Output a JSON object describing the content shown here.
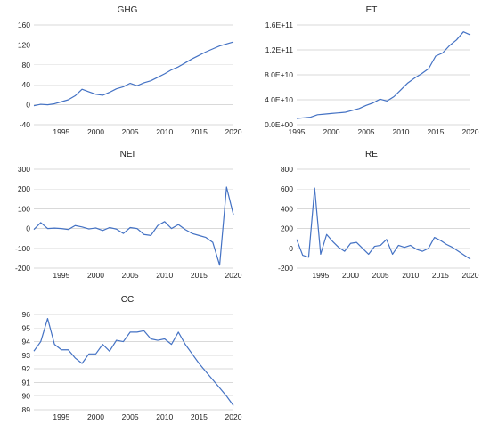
{
  "chart_data": [
    {
      "type": "line",
      "title": "GHG",
      "x": [
        1991,
        1992,
        1993,
        1994,
        1995,
        1996,
        1997,
        1998,
        1999,
        2000,
        2001,
        2002,
        2003,
        2004,
        2005,
        2006,
        2007,
        2008,
        2009,
        2010,
        2011,
        2012,
        2013,
        2014,
        2015,
        2016,
        2017,
        2018,
        2019,
        2020
      ],
      "series": [
        {
          "values": [
            -2,
            1,
            0,
            2,
            6,
            10,
            18,
            31,
            26,
            21,
            19,
            25,
            32,
            36,
            43,
            38,
            44,
            48,
            55,
            62,
            70,
            76,
            84,
            92,
            99,
            106,
            112,
            118,
            122,
            126
          ]
        }
      ],
      "ylim": [
        -40,
        160
      ],
      "yticks": [
        "-40",
        "0",
        "40",
        "80",
        "120",
        "160"
      ],
      "xticks": [
        1995,
        2000,
        2005,
        2010,
        2015,
        2020
      ],
      "grid": true,
      "legend": "none"
    },
    {
      "type": "line",
      "title": "ET",
      "x": [
        1995,
        1996,
        1997,
        1998,
        1999,
        2000,
        2001,
        2002,
        2003,
        2004,
        2005,
        2006,
        2007,
        2008,
        2009,
        2010,
        2011,
        2012,
        2013,
        2014,
        2015,
        2016,
        2017,
        2018,
        2019,
        2020
      ],
      "series": [
        {
          "values": [
            10000000000,
            11000000000,
            12000000000,
            16000000000,
            17000000000,
            18000000000,
            19000000000,
            20000000000,
            23000000000,
            26000000000,
            31000000000,
            35000000000,
            41000000000,
            38000000000,
            45000000000,
            56000000000,
            67000000000,
            75000000000,
            82000000000,
            90000000000,
            110000000000,
            115000000000,
            127000000000,
            136000000000,
            149000000000,
            144000000000
          ]
        }
      ],
      "ylim": [
        0,
        160000000000
      ],
      "yticks": [
        "0.0E+00",
        "4.0E+10",
        "8.0E+10",
        "1.2E+11",
        "1.6E+11"
      ],
      "xticks": [
        1995,
        2000,
        2005,
        2010,
        2015,
        2020
      ],
      "grid": true,
      "legend": "none"
    },
    {
      "type": "line",
      "title": "NEI",
      "x": [
        1991,
        1992,
        1993,
        1994,
        1995,
        1996,
        1997,
        1998,
        1999,
        2000,
        2001,
        2002,
        2003,
        2004,
        2005,
        2006,
        2007,
        2008,
        2009,
        2010,
        2011,
        2012,
        2013,
        2014,
        2015,
        2016,
        2017,
        2018,
        2019,
        2020
      ],
      "series": [
        {
          "values": [
            -5,
            30,
            0,
            2,
            0,
            -5,
            15,
            8,
            -2,
            3,
            -10,
            5,
            -3,
            -25,
            5,
            0,
            -30,
            -35,
            15,
            35,
            0,
            20,
            -5,
            -25,
            -35,
            -45,
            -70,
            -185,
            210,
            70
          ]
        }
      ],
      "ylim": [
        -200,
        300
      ],
      "yticks": [
        "-200",
        "-100",
        "0",
        "100",
        "200",
        "300"
      ],
      "xticks": [
        1995,
        2000,
        2005,
        2010,
        2015,
        2020
      ],
      "grid": true,
      "legend": "none"
    },
    {
      "type": "line",
      "title": "RE",
      "x": [
        1991,
        1992,
        1993,
        1994,
        1995,
        1996,
        1997,
        1998,
        1999,
        2000,
        2001,
        2002,
        2003,
        2004,
        2005,
        2006,
        2007,
        2008,
        2009,
        2010,
        2011,
        2012,
        2013,
        2014,
        2015,
        2016,
        2017,
        2018,
        2019,
        2020
      ],
      "series": [
        {
          "values": [
            90,
            -70,
            -90,
            610,
            -60,
            140,
            70,
            10,
            -30,
            50,
            60,
            0,
            -60,
            20,
            30,
            90,
            -60,
            30,
            10,
            30,
            -10,
            -30,
            0,
            110,
            80,
            40,
            10,
            -30,
            -70,
            -110
          ]
        }
      ],
      "ylim": [
        -200,
        800
      ],
      "yticks": [
        "-200",
        "0",
        "200",
        "400",
        "600",
        "800"
      ],
      "xticks": [
        1995,
        2000,
        2005,
        2010,
        2015,
        2020
      ],
      "grid": true,
      "legend": "none"
    },
    {
      "type": "line",
      "title": "CC",
      "x": [
        1991,
        1992,
        1993,
        1994,
        1995,
        1996,
        1997,
        1998,
        1999,
        2000,
        2001,
        2002,
        2003,
        2004,
        2005,
        2006,
        2007,
        2008,
        2009,
        2010,
        2011,
        2012,
        2013,
        2014,
        2015,
        2016,
        2017,
        2018,
        2019,
        2020
      ],
      "series": [
        {
          "values": [
            93.3,
            94.0,
            95.7,
            93.8,
            93.4,
            93.4,
            92.8,
            92.4,
            93.1,
            93.1,
            93.8,
            93.3,
            94.1,
            94.0,
            94.7,
            94.7,
            94.8,
            94.2,
            94.1,
            94.2,
            93.8,
            94.7,
            93.8,
            93.1,
            92.4,
            91.8,
            91.2,
            90.6,
            90.0,
            89.3
          ]
        }
      ],
      "ylim": [
        89,
        96
      ],
      "yticks": [
        "89",
        "90",
        "91",
        "92",
        "93",
        "94",
        "95",
        "96"
      ],
      "xticks": [
        1995,
        2000,
        2005,
        2010,
        2015,
        2020
      ],
      "grid": true,
      "legend": "none"
    }
  ]
}
